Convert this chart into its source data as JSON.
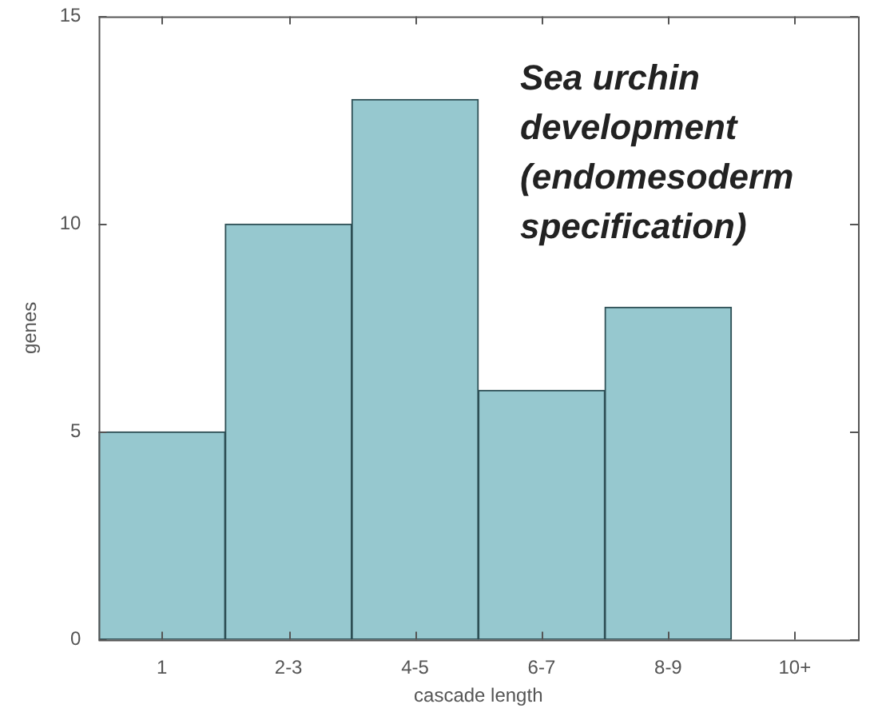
{
  "chart_data": {
    "type": "bar",
    "title": "Sea urchin\ndevelopment\n(endomesoderm\nspecification)",
    "xlabel": "cascade length",
    "ylabel": "genes",
    "categories": [
      "1",
      "2-3",
      "4-5",
      "6-7",
      "8-9",
      "10+"
    ],
    "values": [
      5,
      10,
      13,
      6,
      8,
      0
    ],
    "color": "#96c8cf",
    "ylim": [
      0,
      15
    ],
    "yticks": [
      0,
      5,
      10,
      15
    ],
    "grid": false,
    "legend": false
  }
}
